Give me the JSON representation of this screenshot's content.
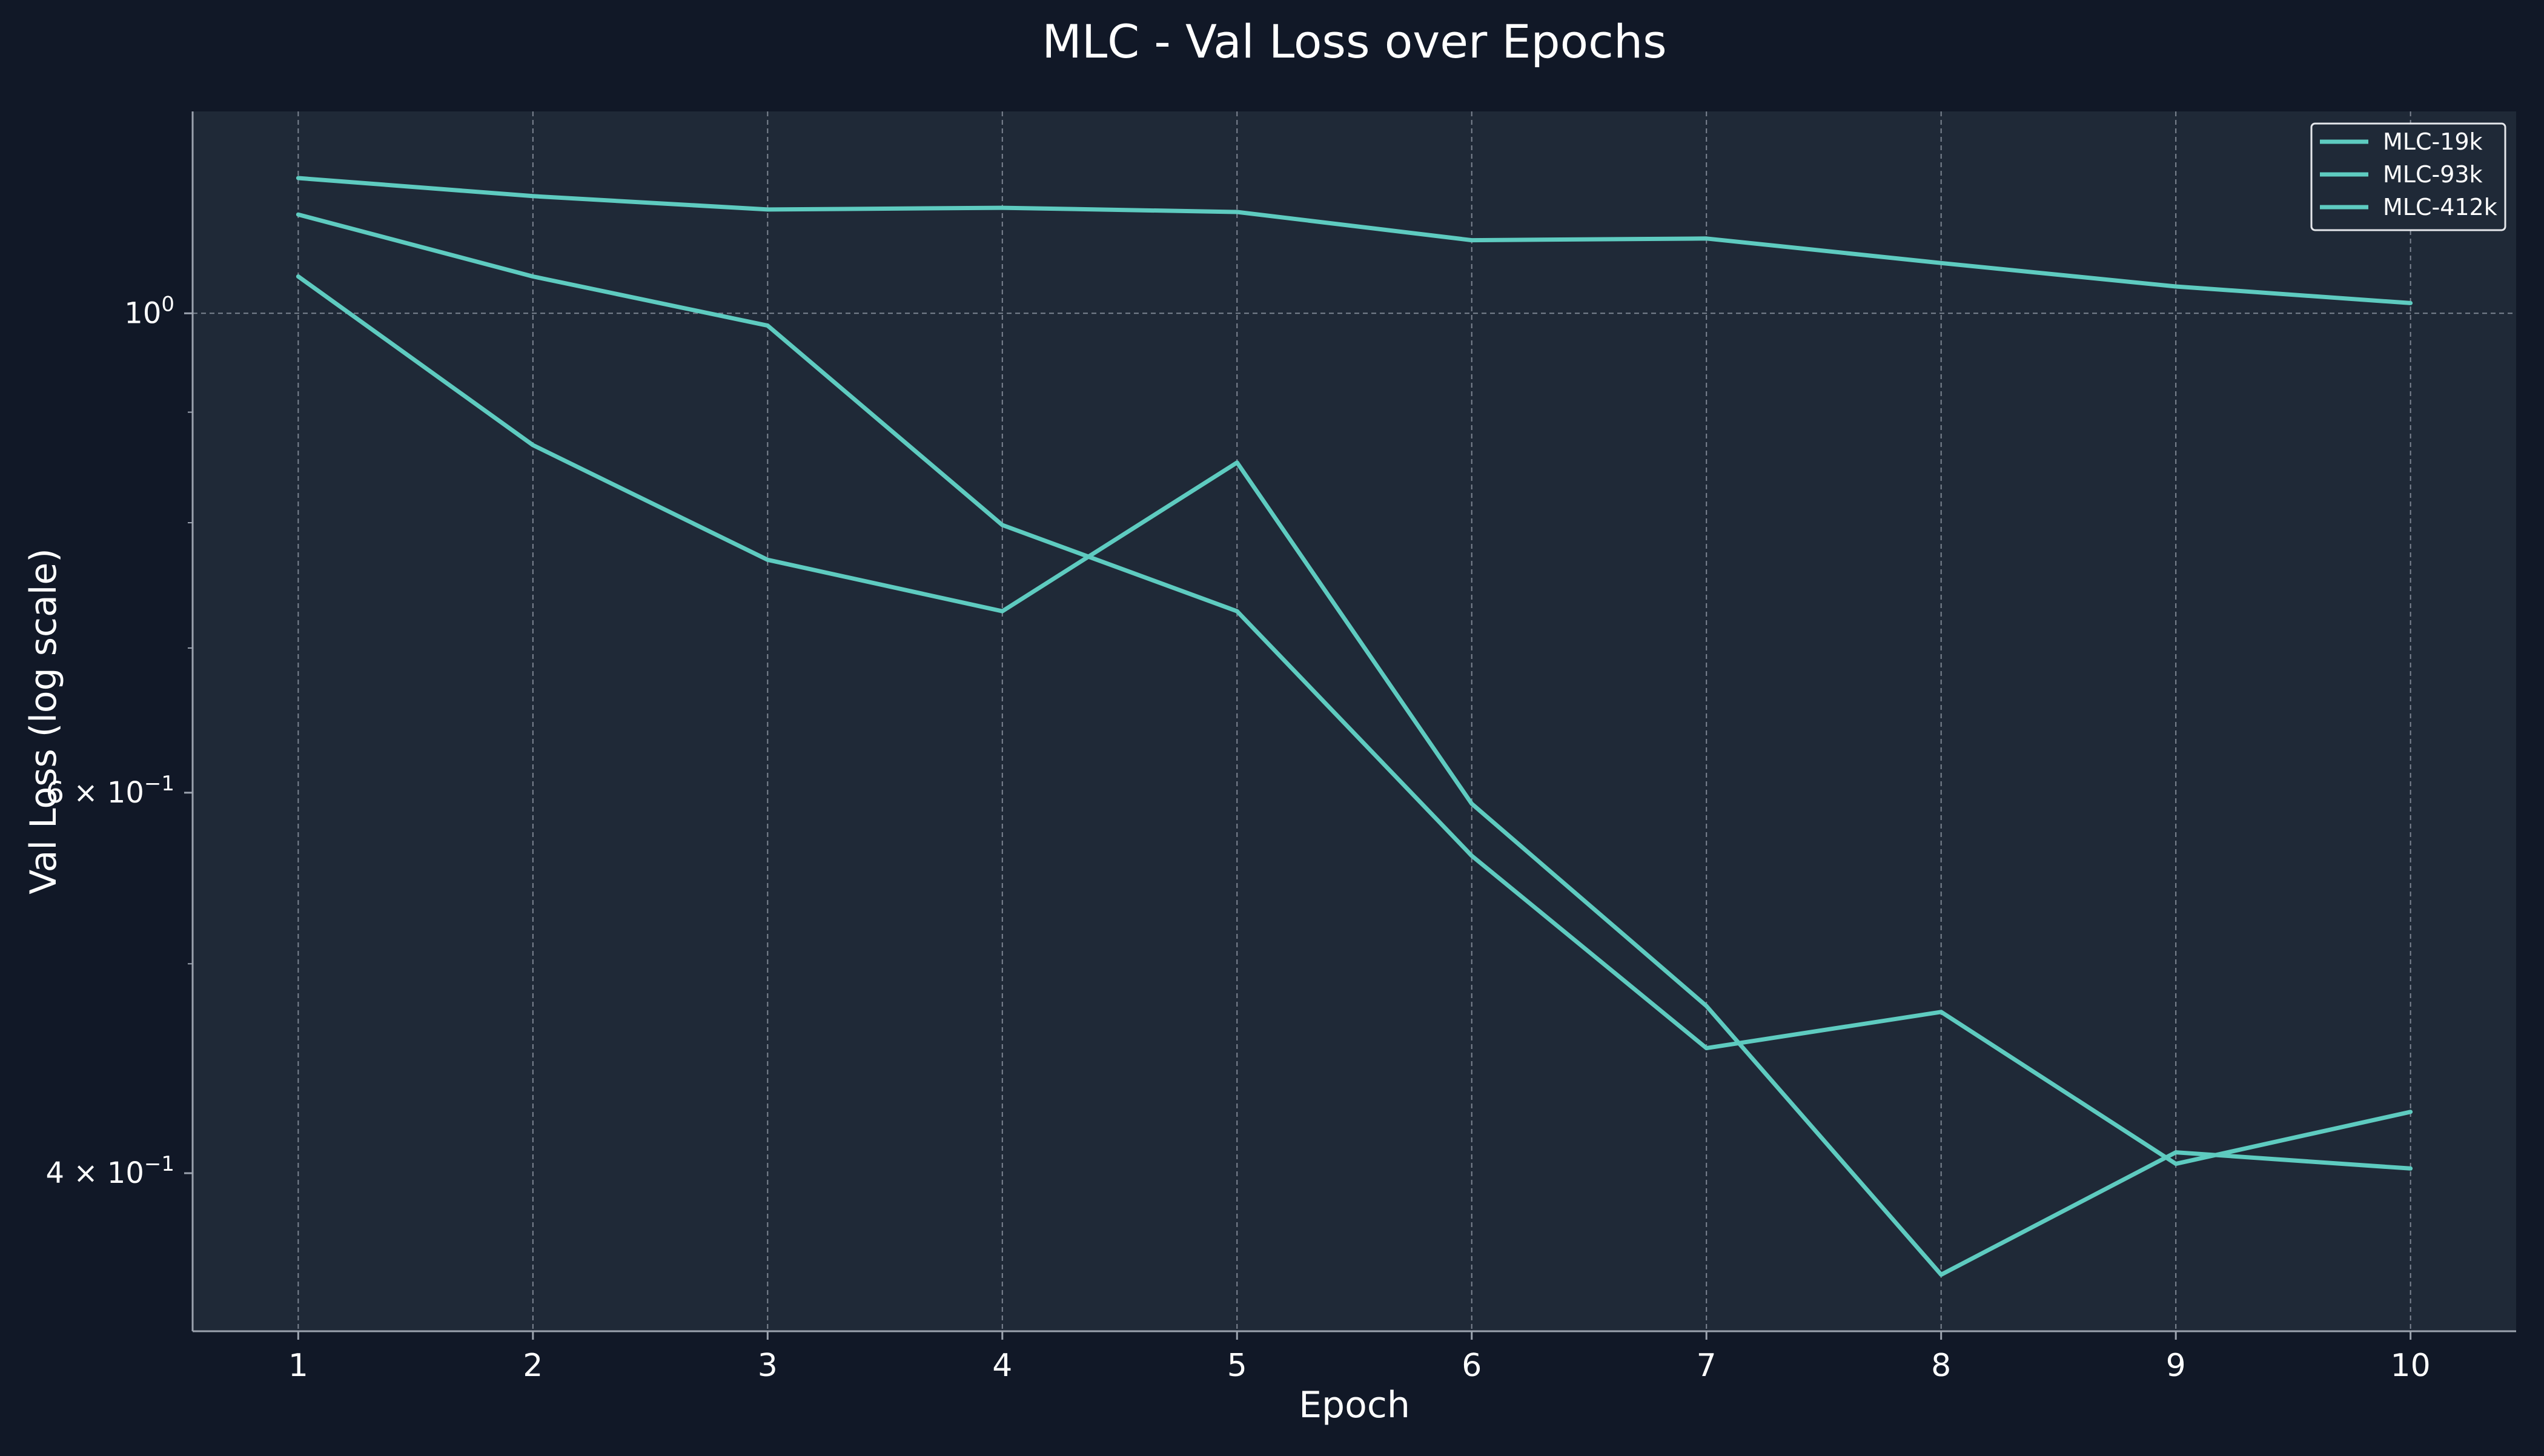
{
  "colors": {
    "background": "#111827",
    "plot_background": "#1f2937",
    "grid": "#9ca3af",
    "axis": "#9ca3af",
    "text": "#ffffff",
    "line": "#5ecbc0"
  },
  "chart_data": {
    "type": "line",
    "title": "MLC - Val Loss over Epochs",
    "xlabel": "Epoch",
    "ylabel": "Val Loss (log scale)",
    "yscale": "log",
    "xlim": [
      0.55,
      10.45
    ],
    "ylim": [
      0.338,
      1.24
    ],
    "grid": true,
    "legend_position": "top-right",
    "x": [
      1,
      2,
      3,
      4,
      5,
      6,
      7,
      8,
      9,
      10
    ],
    "x_ticks": [
      "1",
      "2",
      "3",
      "4",
      "5",
      6,
      "7",
      "8",
      "9",
      "10"
    ],
    "y_ticks": [
      {
        "value": 1.0,
        "base": "10",
        "exp": "0"
      },
      {
        "value": 0.6,
        "base": "6 × 10",
        "exp": "−1"
      },
      {
        "value": 0.4,
        "base": "4 × 10",
        "exp": "−1"
      }
    ],
    "y_minor_ticks": [
      0.9,
      0.8,
      0.7,
      0.5,
      0.3
    ],
    "series": [
      {
        "name": "MLC-19k",
        "values": [
          1.155,
          1.133,
          1.117,
          1.119,
          1.114,
          1.081,
          1.083,
          1.055,
          1.029,
          1.011
        ]
      },
      {
        "name": "MLC-93k",
        "values": [
          1.111,
          1.04,
          0.987,
          0.798,
          0.728,
          0.561,
          0.457,
          0.475,
          0.404,
          0.427
        ]
      },
      {
        "name": "MLC-412k",
        "values": [
          1.04,
          0.869,
          0.769,
          0.728,
          0.853,
          0.593,
          0.478,
          0.359,
          0.409,
          0.402
        ]
      }
    ]
  }
}
